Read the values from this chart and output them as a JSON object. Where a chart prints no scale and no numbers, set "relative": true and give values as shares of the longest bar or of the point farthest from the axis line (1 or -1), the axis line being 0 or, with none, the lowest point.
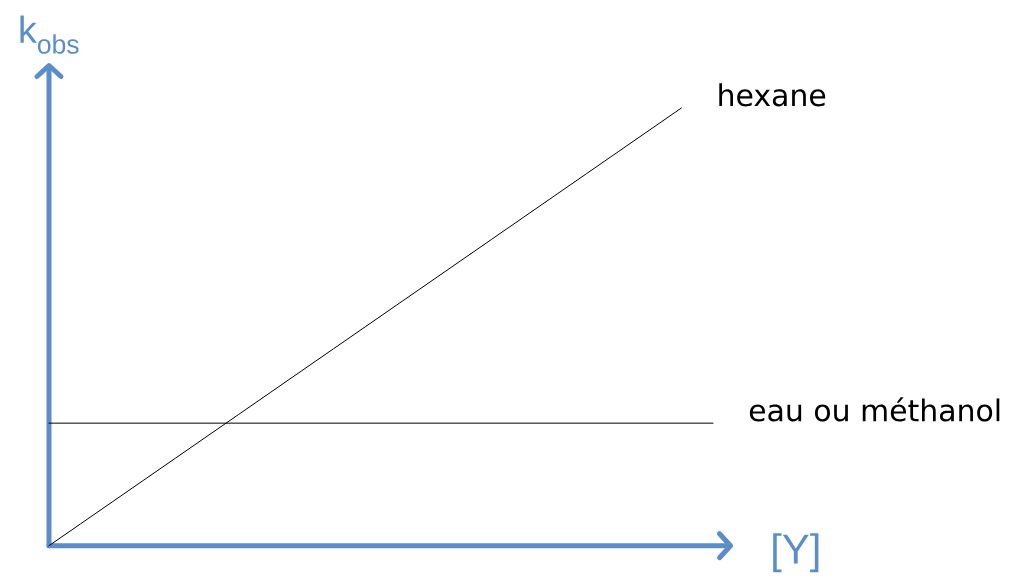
{
  "chart_data": {
    "type": "line",
    "relative": true,
    "xlabel": "[Y]",
    "ylabel": "k$_{obs}$",
    "line_style": "solid",
    "categories": [
      null,
      null,
      null,
      null,
      null,
      null,
      null,
      null,
      null,
      null,
      null,
      null,
      null,
      null,
      null,
      null,
      null,
      null,
      null,
      null,
      null,
      null
    ],
    "series": [
      {
        "name": "hexane",
        "color": "#000000",
        "values": [
          0,
          0.05,
          0.1,
          0.15,
          0.2,
          0.25,
          0.3,
          0.35,
          0.4,
          0.45,
          0.5,
          0.55,
          0.6,
          0.65,
          0.7,
          0.75,
          0.8,
          0.85,
          0.9,
          0.95,
          1,
          null
        ]
      },
      {
        "name": "eau ou méthanol",
        "color": "#000000",
        "values": [
          0.28,
          0.28,
          0.28,
          0.28,
          0.28,
          0.28,
          0.28,
          0.28,
          0.28,
          0.28,
          0.28,
          0.28,
          0.28,
          0.28,
          0.28,
          0.28,
          0.28,
          0.28,
          0.28,
          0.28,
          0.28,
          0.28
        ]
      }
    ]
  }
}
